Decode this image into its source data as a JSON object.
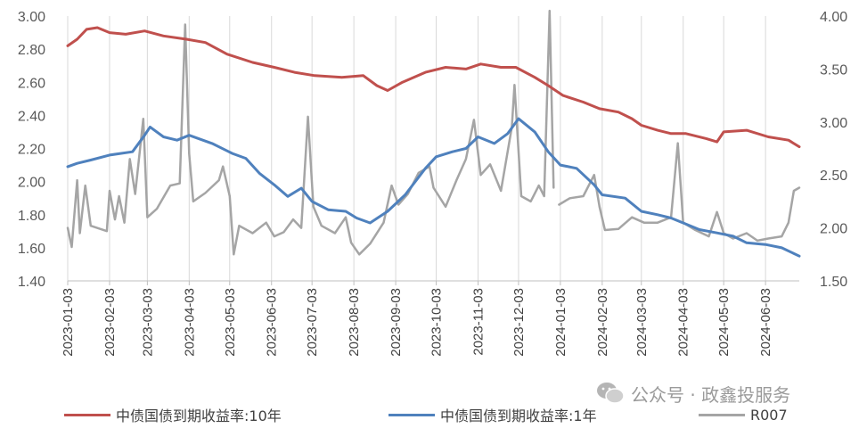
{
  "chart_data": {
    "type": "line",
    "title": "",
    "y_left": {
      "range": [
        1.4,
        3.0
      ],
      "ticks": [
        "1.40",
        "1.60",
        "1.80",
        "2.00",
        "2.20",
        "2.40",
        "2.60",
        "2.80",
        "3.00"
      ]
    },
    "y_right": {
      "range": [
        1.5,
        4.0
      ],
      "ticks": [
        "1.50",
        "2.00",
        "2.50",
        "3.00",
        "3.50",
        "4.00"
      ]
    },
    "x_range": [
      "2023-01-03",
      "2024-06-28"
    ],
    "x_ticks": [
      "2023-01-03",
      "2023-02-03",
      "2023-03-03",
      "2023-04-03",
      "2023-05-03",
      "2023-06-03",
      "2023-07-03",
      "2023-08-03",
      "2023-09-03",
      "2023-10-03",
      "2023-11-03",
      "2023-12-03",
      "2024-01-03",
      "2024-02-03",
      "2024-03-03",
      "2024-04-03",
      "2024-05-03",
      "2024-06-03"
    ],
    "grid": "vertical",
    "legend_position": "bottom",
    "series": [
      {
        "name": "中债国债到期收益率:10年",
        "axis": "left",
        "color": "#c0504d",
        "points": [
          [
            "2023-01-03",
            2.82
          ],
          [
            "2023-01-10",
            2.86
          ],
          [
            "2023-01-17",
            2.92
          ],
          [
            "2023-01-25",
            2.93
          ],
          [
            "2023-02-03",
            2.9
          ],
          [
            "2023-02-15",
            2.89
          ],
          [
            "2023-03-01",
            2.91
          ],
          [
            "2023-03-15",
            2.88
          ],
          [
            "2023-04-01",
            2.86
          ],
          [
            "2023-04-15",
            2.84
          ],
          [
            "2023-05-01",
            2.77
          ],
          [
            "2023-05-20",
            2.72
          ],
          [
            "2023-06-05",
            2.69
          ],
          [
            "2023-06-20",
            2.66
          ],
          [
            "2023-07-05",
            2.64
          ],
          [
            "2023-07-25",
            2.63
          ],
          [
            "2023-08-10",
            2.64
          ],
          [
            "2023-08-20",
            2.58
          ],
          [
            "2023-08-28",
            2.55
          ],
          [
            "2023-09-08",
            2.6
          ],
          [
            "2023-09-25",
            2.66
          ],
          [
            "2023-10-10",
            2.69
          ],
          [
            "2023-10-25",
            2.68
          ],
          [
            "2023-11-05",
            2.71
          ],
          [
            "2023-11-20",
            2.69
          ],
          [
            "2023-12-01",
            2.69
          ],
          [
            "2023-12-15",
            2.63
          ],
          [
            "2023-12-25",
            2.58
          ],
          [
            "2024-01-05",
            2.52
          ],
          [
            "2024-01-20",
            2.48
          ],
          [
            "2024-02-01",
            2.44
          ],
          [
            "2024-02-15",
            2.42
          ],
          [
            "2024-02-25",
            2.38
          ],
          [
            "2024-03-03",
            2.34
          ],
          [
            "2024-03-15",
            2.31
          ],
          [
            "2024-03-25",
            2.29
          ],
          [
            "2024-04-05",
            2.29
          ],
          [
            "2024-04-20",
            2.26
          ],
          [
            "2024-04-28",
            2.24
          ],
          [
            "2024-05-03",
            2.3
          ],
          [
            "2024-05-20",
            2.31
          ],
          [
            "2024-06-05",
            2.27
          ],
          [
            "2024-06-20",
            2.25
          ],
          [
            "2024-06-28",
            2.21
          ]
        ]
      },
      {
        "name": "中债国债到期收益率:1年",
        "axis": "left",
        "color": "#4f81bd",
        "points": [
          [
            "2023-01-03",
            2.09
          ],
          [
            "2023-01-10",
            2.11
          ],
          [
            "2023-01-20",
            2.13
          ],
          [
            "2023-02-03",
            2.16
          ],
          [
            "2023-02-20",
            2.18
          ],
          [
            "2023-03-01",
            2.28
          ],
          [
            "2023-03-05",
            2.33
          ],
          [
            "2023-03-15",
            2.27
          ],
          [
            "2023-03-25",
            2.25
          ],
          [
            "2023-04-03",
            2.28
          ],
          [
            "2023-04-20",
            2.23
          ],
          [
            "2023-05-05",
            2.17
          ],
          [
            "2023-05-15",
            2.14
          ],
          [
            "2023-05-25",
            2.05
          ],
          [
            "2023-06-05",
            1.98
          ],
          [
            "2023-06-15",
            1.91
          ],
          [
            "2023-06-25",
            1.96
          ],
          [
            "2023-07-03",
            1.88
          ],
          [
            "2023-07-15",
            1.83
          ],
          [
            "2023-07-28",
            1.82
          ],
          [
            "2023-08-05",
            1.78
          ],
          [
            "2023-08-15",
            1.75
          ],
          [
            "2023-08-28",
            1.82
          ],
          [
            "2023-09-10",
            1.92
          ],
          [
            "2023-09-25",
            2.08
          ],
          [
            "2023-10-03",
            2.15
          ],
          [
            "2023-10-15",
            2.18
          ],
          [
            "2023-10-25",
            2.2
          ],
          [
            "2023-11-03",
            2.27
          ],
          [
            "2023-11-15",
            2.23
          ],
          [
            "2023-11-25",
            2.29
          ],
          [
            "2023-12-03",
            2.38
          ],
          [
            "2023-12-15",
            2.3
          ],
          [
            "2023-12-25",
            2.18
          ],
          [
            "2024-01-03",
            2.1
          ],
          [
            "2024-01-15",
            2.08
          ],
          [
            "2024-01-28",
            1.98
          ],
          [
            "2024-02-03",
            1.92
          ],
          [
            "2024-02-20",
            1.9
          ],
          [
            "2024-03-03",
            1.82
          ],
          [
            "2024-03-15",
            1.8
          ],
          [
            "2024-03-25",
            1.78
          ],
          [
            "2024-04-03",
            1.75
          ],
          [
            "2024-04-15",
            1.71
          ],
          [
            "2024-04-28",
            1.69
          ],
          [
            "2024-05-10",
            1.67
          ],
          [
            "2024-05-20",
            1.63
          ],
          [
            "2024-06-03",
            1.62
          ],
          [
            "2024-06-15",
            1.6
          ],
          [
            "2024-06-28",
            1.55
          ]
        ]
      },
      {
        "name": "R007",
        "axis": "right",
        "color": "#a5a5a5",
        "gap_after": "2023-12-29",
        "points": [
          [
            "2023-01-03",
            2.0
          ],
          [
            "2023-01-06",
            1.82
          ],
          [
            "2023-01-10",
            2.45
          ],
          [
            "2023-01-12",
            1.95
          ],
          [
            "2023-01-16",
            2.4
          ],
          [
            "2023-01-20",
            2.02
          ],
          [
            "2023-02-01",
            1.97
          ],
          [
            "2023-02-03",
            2.35
          ],
          [
            "2023-02-07",
            2.08
          ],
          [
            "2023-02-10",
            2.3
          ],
          [
            "2023-02-14",
            2.05
          ],
          [
            "2023-02-18",
            2.65
          ],
          [
            "2023-02-22",
            2.32
          ],
          [
            "2023-02-28",
            3.03
          ],
          [
            "2023-03-03",
            2.1
          ],
          [
            "2023-03-10",
            2.18
          ],
          [
            "2023-03-20",
            2.4
          ],
          [
            "2023-03-27",
            2.42
          ],
          [
            "2023-03-31",
            3.92
          ],
          [
            "2023-04-03",
            2.7
          ],
          [
            "2023-04-06",
            2.25
          ],
          [
            "2023-04-15",
            2.33
          ],
          [
            "2023-04-25",
            2.45
          ],
          [
            "2023-04-28",
            2.58
          ],
          [
            "2023-05-03",
            2.3
          ],
          [
            "2023-05-06",
            1.75
          ],
          [
            "2023-05-10",
            2.02
          ],
          [
            "2023-05-20",
            1.95
          ],
          [
            "2023-05-30",
            2.05
          ],
          [
            "2023-06-05",
            1.92
          ],
          [
            "2023-06-12",
            1.96
          ],
          [
            "2023-06-19",
            2.08
          ],
          [
            "2023-06-25",
            2.0
          ],
          [
            "2023-06-30",
            3.05
          ],
          [
            "2023-07-04",
            2.2
          ],
          [
            "2023-07-10",
            2.02
          ],
          [
            "2023-07-20",
            1.95
          ],
          [
            "2023-07-28",
            2.1
          ],
          [
            "2023-08-01",
            1.86
          ],
          [
            "2023-08-07",
            1.75
          ],
          [
            "2023-08-15",
            1.85
          ],
          [
            "2023-08-25",
            2.05
          ],
          [
            "2023-08-31",
            2.4
          ],
          [
            "2023-09-05",
            2.22
          ],
          [
            "2023-09-12",
            2.32
          ],
          [
            "2023-09-20",
            2.52
          ],
          [
            "2023-09-28",
            2.58
          ],
          [
            "2023-10-01",
            2.38
          ],
          [
            "2023-10-10",
            2.2
          ],
          [
            "2023-10-18",
            2.45
          ],
          [
            "2023-10-25",
            2.65
          ],
          [
            "2023-10-31",
            3.02
          ],
          [
            "2023-11-05",
            2.5
          ],
          [
            "2023-11-12",
            2.6
          ],
          [
            "2023-11-20",
            2.35
          ],
          [
            "2023-11-28",
            2.95
          ],
          [
            "2023-11-30",
            3.35
          ],
          [
            "2023-12-05",
            2.3
          ],
          [
            "2023-12-12",
            2.25
          ],
          [
            "2023-12-18",
            2.4
          ],
          [
            "2023-12-22",
            2.3
          ],
          [
            "2023-12-26",
            4.05
          ],
          [
            "2023-12-29",
            2.38
          ],
          [
            "2024-01-02",
            2.22
          ],
          [
            "2024-01-10",
            2.28
          ],
          [
            "2024-01-20",
            2.3
          ],
          [
            "2024-01-28",
            2.5
          ],
          [
            "2024-02-01",
            2.2
          ],
          [
            "2024-02-05",
            1.98
          ],
          [
            "2024-02-15",
            1.99
          ],
          [
            "2024-02-25",
            2.1
          ],
          [
            "2024-03-05",
            2.05
          ],
          [
            "2024-03-15",
            2.05
          ],
          [
            "2024-03-25",
            2.1
          ],
          [
            "2024-03-30",
            2.8
          ],
          [
            "2024-04-03",
            2.05
          ],
          [
            "2024-04-12",
            1.98
          ],
          [
            "2024-04-22",
            1.92
          ],
          [
            "2024-04-28",
            2.15
          ],
          [
            "2024-05-03",
            1.95
          ],
          [
            "2024-05-10",
            1.9
          ],
          [
            "2024-05-20",
            1.95
          ],
          [
            "2024-05-28",
            1.88
          ],
          [
            "2024-06-05",
            1.9
          ],
          [
            "2024-06-15",
            1.92
          ],
          [
            "2024-06-20",
            2.05
          ],
          [
            "2024-06-24",
            2.35
          ],
          [
            "2024-06-28",
            2.38
          ]
        ]
      }
    ]
  },
  "watermark": {
    "text": "公众号 · 政鑫投服务",
    "icon": "wechat-icon"
  }
}
